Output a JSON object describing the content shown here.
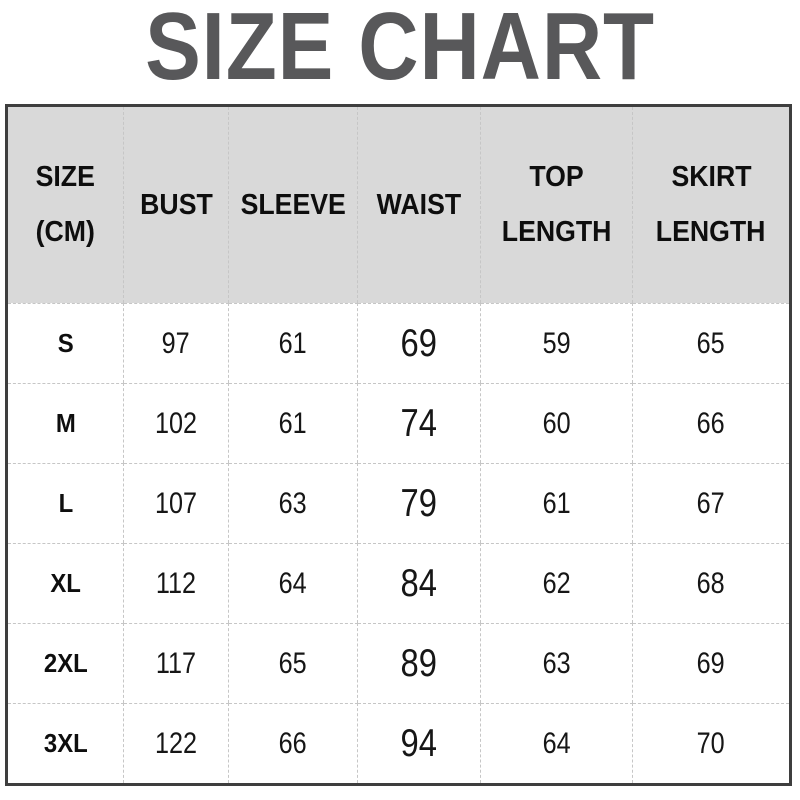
{
  "chart_data": {
    "type": "table",
    "title": "SIZE CHART",
    "units": "CM",
    "columns": [
      "SIZE (CM)",
      "BUST",
      "SLEEVE",
      "WAIST",
      "TOP LENGTH",
      "SKIRT LENGTH"
    ],
    "rows": [
      [
        "S",
        97,
        61,
        69,
        59,
        65
      ],
      [
        "M",
        102,
        61,
        74,
        60,
        66
      ],
      [
        "L",
        107,
        63,
        79,
        61,
        67
      ],
      [
        "XL",
        112,
        64,
        84,
        62,
        68
      ],
      [
        "2XL",
        117,
        65,
        89,
        63,
        69
      ],
      [
        "3XL",
        122,
        66,
        94,
        64,
        70
      ]
    ],
    "layout_hints": {
      "header_background": "#d9d9d9",
      "grid": "dashed light-gray inner lines, dark solid outer border",
      "waist_column_emphasis": "larger font size"
    }
  },
  "table": {
    "header": {
      "c1": {
        "l1": "SIZE",
        "l2": "(CM)"
      },
      "c2": {
        "l1": "BUST"
      },
      "c3": {
        "l1": "SLEEVE"
      },
      "c4": {
        "l1": "WAIST"
      },
      "c5": {
        "l1": "TOP",
        "l2": "LENGTH"
      },
      "c6": {
        "l1": "SKIRT",
        "l2": "LENGTH"
      }
    }
  },
  "colors": {
    "title_text": "#58585a",
    "header_background": "#d9d9d9",
    "outer_border": "#3e3e3e",
    "grid_dashes": "#c6c6c6",
    "body_text": "#161616",
    "page_background": "#ffffff"
  }
}
